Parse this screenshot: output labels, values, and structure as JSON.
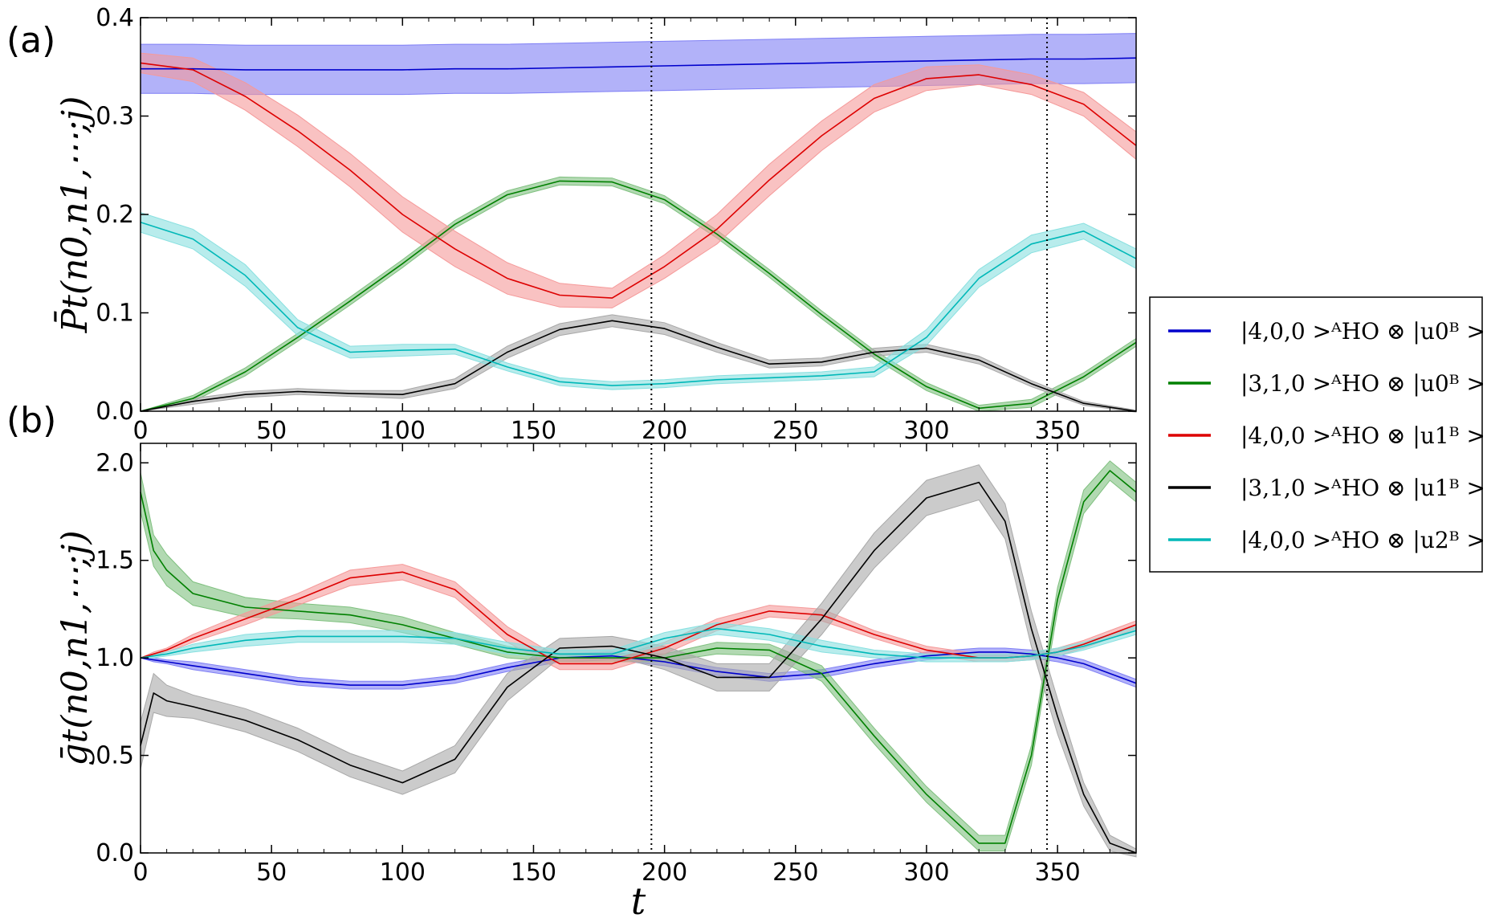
{
  "chart_data": [
    {
      "type": "line",
      "panel_label": "(a)",
      "ylabel": "P̄t(n0,n1,⋯;j)",
      "xlim": [
        0,
        380
      ],
      "ylim": [
        0,
        0.4
      ],
      "xticks": [
        "0",
        "50",
        "100",
        "150",
        "200",
        "250",
        "300",
        "350"
      ],
      "yticks": [
        "0.0",
        "0.1",
        "0.2",
        "0.3",
        "0.4"
      ],
      "vlines": [
        195,
        346
      ],
      "x": [
        0,
        20,
        40,
        60,
        80,
        100,
        120,
        140,
        160,
        180,
        200,
        220,
        240,
        260,
        280,
        300,
        320,
        340,
        360,
        380
      ],
      "series": [
        {
          "key": "s1",
          "color": "#0000cc",
          "band": "#7f7ff5",
          "values": [
            0.348,
            0.348,
            0.347,
            0.347,
            0.347,
            0.347,
            0.348,
            0.348,
            0.349,
            0.35,
            0.351,
            0.352,
            0.353,
            0.354,
            0.355,
            0.356,
            0.357,
            0.358,
            0.358,
            0.359
          ],
          "band_width": [
            0.025,
            0.025,
            0.025,
            0.025,
            0.025,
            0.025,
            0.025,
            0.025,
            0.025,
            0.025,
            0.025,
            0.025,
            0.025,
            0.025,
            0.025,
            0.025,
            0.025,
            0.025,
            0.025,
            0.025
          ]
        },
        {
          "key": "s2",
          "color": "#008000",
          "band": "#7fc07f",
          "values": [
            0.0,
            0.013,
            0.04,
            0.075,
            0.112,
            0.15,
            0.19,
            0.22,
            0.234,
            0.233,
            0.215,
            0.18,
            0.14,
            0.098,
            0.058,
            0.025,
            0.003,
            0.008,
            0.035,
            0.07
          ],
          "band_width": [
            0.0,
            0.003,
            0.004,
            0.004,
            0.004,
            0.004,
            0.004,
            0.004,
            0.004,
            0.004,
            0.004,
            0.004,
            0.004,
            0.004,
            0.004,
            0.004,
            0.003,
            0.004,
            0.004,
            0.004
          ]
        },
        {
          "key": "s3",
          "color": "#dd0000",
          "band": "#f59999",
          "values": [
            0.354,
            0.347,
            0.32,
            0.285,
            0.245,
            0.2,
            0.165,
            0.135,
            0.118,
            0.115,
            0.147,
            0.185,
            0.235,
            0.28,
            0.318,
            0.338,
            0.342,
            0.332,
            0.312,
            0.27
          ],
          "band_width": [
            0.01,
            0.012,
            0.014,
            0.016,
            0.017,
            0.018,
            0.018,
            0.016,
            0.012,
            0.01,
            0.012,
            0.015,
            0.016,
            0.015,
            0.014,
            0.012,
            0.01,
            0.01,
            0.012,
            0.014
          ]
        },
        {
          "key": "s4",
          "color": "#000000",
          "band": "#a8a8a8",
          "values": [
            0.0,
            0.01,
            0.017,
            0.02,
            0.018,
            0.017,
            0.028,
            0.06,
            0.083,
            0.092,
            0.084,
            0.065,
            0.048,
            0.05,
            0.06,
            0.064,
            0.052,
            0.028,
            0.008,
            0.0
          ],
          "band_width": [
            0.0,
            0.003,
            0.003,
            0.003,
            0.003,
            0.004,
            0.005,
            0.006,
            0.006,
            0.006,
            0.006,
            0.005,
            0.004,
            0.004,
            0.004,
            0.004,
            0.004,
            0.003,
            0.002,
            0.001
          ]
        },
        {
          "key": "s5",
          "color": "#00b8b8",
          "band": "#88e0e0",
          "values": [
            0.192,
            0.175,
            0.138,
            0.085,
            0.06,
            0.062,
            0.063,
            0.045,
            0.03,
            0.026,
            0.028,
            0.032,
            0.034,
            0.036,
            0.04,
            0.075,
            0.135,
            0.17,
            0.183,
            0.155
          ],
          "band_width": [
            0.01,
            0.01,
            0.011,
            0.008,
            0.006,
            0.006,
            0.005,
            0.004,
            0.004,
            0.004,
            0.004,
            0.004,
            0.004,
            0.004,
            0.005,
            0.008,
            0.009,
            0.009,
            0.008,
            0.01
          ]
        }
      ]
    },
    {
      "type": "line",
      "panel_label": "(b)",
      "ylabel": "ḡt(n0,n1,⋯;j)",
      "xlabel": "t",
      "xlim": [
        0,
        380
      ],
      "ylim": [
        0,
        2.1
      ],
      "xticks": [
        "0",
        "50",
        "100",
        "150",
        "200",
        "250",
        "300",
        "350"
      ],
      "yticks": [
        "0.0",
        "0.5",
        "1.0",
        "1.5",
        "2.0"
      ],
      "vlines": [
        195,
        346
      ],
      "x": [
        0,
        5,
        10,
        20,
        40,
        60,
        80,
        100,
        120,
        140,
        160,
        180,
        200,
        220,
        240,
        260,
        280,
        300,
        320,
        330,
        340,
        350,
        360,
        370,
        380
      ],
      "series": [
        {
          "key": "s1",
          "color": "#0000cc",
          "band": "#7f7ff5",
          "values": [
            1.0,
            0.99,
            0.98,
            0.96,
            0.92,
            0.88,
            0.86,
            0.86,
            0.89,
            0.95,
            1.0,
            1.01,
            0.98,
            0.93,
            0.9,
            0.92,
            0.97,
            1.01,
            1.03,
            1.03,
            1.02,
            1.0,
            0.97,
            0.92,
            0.87
          ],
          "band_width": [
            0.0,
            0.01,
            0.01,
            0.02,
            0.02,
            0.02,
            0.02,
            0.02,
            0.02,
            0.02,
            0.02,
            0.02,
            0.02,
            0.02,
            0.02,
            0.02,
            0.02,
            0.02,
            0.02,
            0.02,
            0.02,
            0.02,
            0.02,
            0.02,
            0.02
          ]
        },
        {
          "key": "s2",
          "color": "#008000",
          "band": "#7fc07f",
          "values": [
            1.85,
            1.55,
            1.45,
            1.33,
            1.26,
            1.24,
            1.22,
            1.17,
            1.1,
            1.03,
            1.0,
            1.0,
            1.0,
            1.05,
            1.04,
            0.92,
            0.6,
            0.3,
            0.05,
            0.05,
            0.5,
            1.3,
            1.8,
            1.96,
            1.85
          ],
          "band_width": [
            0.1,
            0.08,
            0.08,
            0.06,
            0.05,
            0.04,
            0.04,
            0.04,
            0.03,
            0.03,
            0.02,
            0.02,
            0.02,
            0.03,
            0.03,
            0.04,
            0.04,
            0.04,
            0.04,
            0.04,
            0.05,
            0.06,
            0.06,
            0.05,
            0.05
          ]
        },
        {
          "key": "s3",
          "color": "#dd0000",
          "band": "#f59999",
          "values": [
            1.0,
            1.02,
            1.04,
            1.1,
            1.2,
            1.3,
            1.41,
            1.44,
            1.35,
            1.12,
            0.97,
            0.97,
            1.05,
            1.17,
            1.24,
            1.22,
            1.12,
            1.04,
            1.0,
            1.0,
            1.01,
            1.03,
            1.07,
            1.12,
            1.17
          ],
          "band_width": [
            0.0,
            0.01,
            0.01,
            0.02,
            0.03,
            0.03,
            0.04,
            0.04,
            0.04,
            0.04,
            0.03,
            0.03,
            0.03,
            0.03,
            0.03,
            0.03,
            0.02,
            0.02,
            0.02,
            0.02,
            0.02,
            0.02,
            0.02,
            0.02,
            0.02
          ]
        },
        {
          "key": "s4",
          "color": "#000000",
          "band": "#a8a8a8",
          "values": [
            0.55,
            0.82,
            0.78,
            0.75,
            0.68,
            0.58,
            0.45,
            0.36,
            0.48,
            0.85,
            1.05,
            1.06,
            1.0,
            0.9,
            0.9,
            1.2,
            1.55,
            1.82,
            1.9,
            1.7,
            1.15,
            0.7,
            0.3,
            0.05,
            0.0
          ],
          "band_width": [
            0.12,
            0.1,
            0.08,
            0.06,
            0.06,
            0.06,
            0.06,
            0.06,
            0.07,
            0.07,
            0.05,
            0.05,
            0.06,
            0.07,
            0.07,
            0.08,
            0.09,
            0.09,
            0.09,
            0.09,
            0.09,
            0.09,
            0.06,
            0.04,
            0.02
          ]
        },
        {
          "key": "s5",
          "color": "#00b8b8",
          "band": "#88e0e0",
          "values": [
            1.0,
            1.01,
            1.02,
            1.05,
            1.09,
            1.11,
            1.11,
            1.11,
            1.1,
            1.05,
            1.02,
            1.02,
            1.1,
            1.15,
            1.12,
            1.06,
            1.02,
            1.0,
            1.0,
            1.0,
            1.01,
            1.03,
            1.06,
            1.1,
            1.14
          ],
          "band_width": [
            0.0,
            0.01,
            0.01,
            0.02,
            0.03,
            0.03,
            0.03,
            0.03,
            0.03,
            0.03,
            0.02,
            0.02,
            0.03,
            0.03,
            0.03,
            0.03,
            0.02,
            0.02,
            0.02,
            0.02,
            0.02,
            0.02,
            0.02,
            0.02,
            0.02
          ]
        }
      ]
    }
  ],
  "legend": {
    "placement": "right",
    "entries": [
      {
        "key": "s1",
        "color": "#0000cc",
        "label": "|4,0,0 >ᴬHO ⊗ |u0ᴮ >"
      },
      {
        "key": "s2",
        "color": "#008000",
        "label": "|3,1,0 >ᴬHO ⊗ |u0ᴮ >"
      },
      {
        "key": "s3",
        "color": "#dd0000",
        "label": "|4,0,0 >ᴬHO ⊗ |u1ᴮ >"
      },
      {
        "key": "s4",
        "color": "#000000",
        "label": "|3,1,0 >ᴬHO ⊗ |u1ᴮ >"
      },
      {
        "key": "s5",
        "color": "#00b8b8",
        "label": "|4,0,0 >ᴬHO ⊗ |u2ᴮ >"
      }
    ]
  }
}
